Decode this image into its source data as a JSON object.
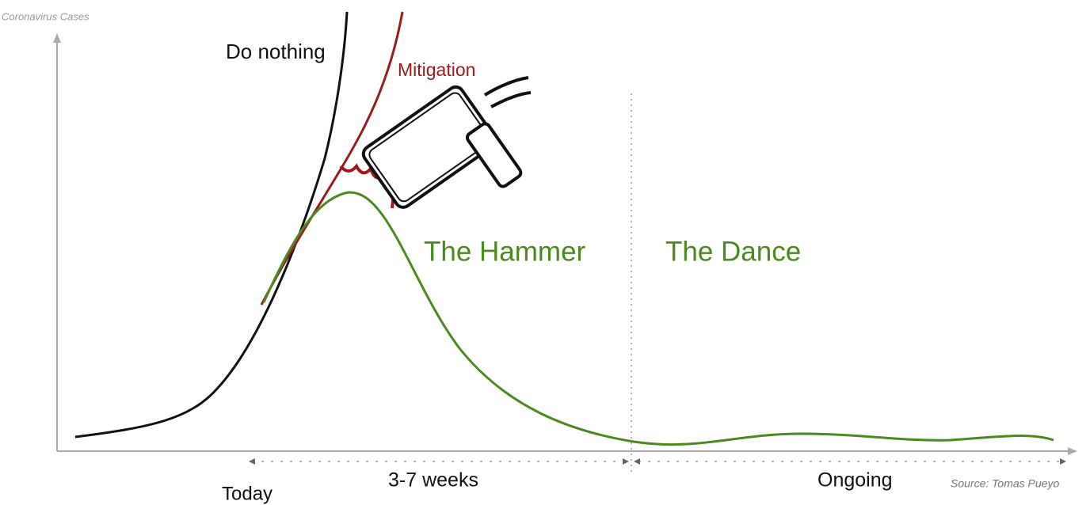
{
  "y_axis_label": "Coronavirus Cases",
  "curves": {
    "do_nothing": "Do nothing",
    "mitigation": "Mitigation"
  },
  "phases": {
    "hammer": "The Hammer",
    "dance": "The Dance"
  },
  "timeline": {
    "today": "Today",
    "hammer_duration": "3-7 weeks",
    "dance_duration": "Ongoing"
  },
  "source": "Source: Tomas Pueyo"
}
